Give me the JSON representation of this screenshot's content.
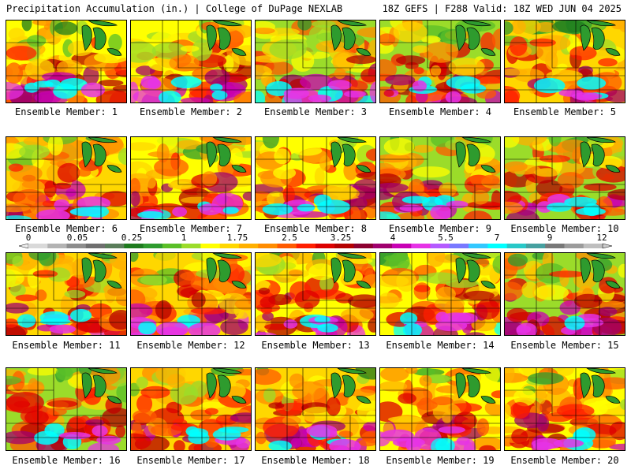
{
  "header": {
    "left": "Precipitation Accumulation (in.) | College of DuPage NEXLAB",
    "right": "18Z GEFS | F288 Valid: 18Z WED JUN 04 2025"
  },
  "colorbar": {
    "tick_labels": [
      "0",
      "0.05",
      "0.25",
      "1",
      "1.75",
      "2.5",
      "3.25",
      "4",
      "5.5",
      "7",
      "9",
      "12"
    ],
    "colors": [
      "#d9d9d9",
      "#b3b3b3",
      "#8c8c8c",
      "#6e6e6e",
      "#5a7d5a",
      "#1e7b1e",
      "#2e9b2e",
      "#5abf28",
      "#9bdc2a",
      "#ffff00",
      "#ffd700",
      "#ffb000",
      "#ff8c00",
      "#ff5a00",
      "#ff1e00",
      "#dc0000",
      "#b40000",
      "#8c0030",
      "#a0006e",
      "#c800b4",
      "#e632e6",
      "#b45aff",
      "#7878ff",
      "#32c8ff",
      "#00ffff",
      "#28c8c8",
      "#46a0a0",
      "#787878",
      "#9b9b9b",
      "#bebebe"
    ]
  },
  "members": [
    {
      "label": "Ensemble Member: 1"
    },
    {
      "label": "Ensemble Member: 2"
    },
    {
      "label": "Ensemble Member: 3"
    },
    {
      "label": "Ensemble Member: 4"
    },
    {
      "label": "Ensemble Member: 5"
    },
    {
      "label": "Ensemble Member: 6"
    },
    {
      "label": "Ensemble Member: 7"
    },
    {
      "label": "Ensemble Member: 8"
    },
    {
      "label": "Ensemble Member: 9"
    },
    {
      "label": "Ensemble Member: 10"
    },
    {
      "label": "Ensemble Member: 11"
    },
    {
      "label": "Ensemble Member: 12"
    },
    {
      "label": "Ensemble Member: 13"
    },
    {
      "label": "Ensemble Member: 14"
    },
    {
      "label": "Ensemble Member: 15"
    },
    {
      "label": "Ensemble Member: 16"
    },
    {
      "label": "Ensemble Member: 17"
    },
    {
      "label": "Ensemble Member: 18"
    },
    {
      "label": "Ensemble Member: 19"
    },
    {
      "label": "Ensemble Member: 20"
    }
  ]
}
